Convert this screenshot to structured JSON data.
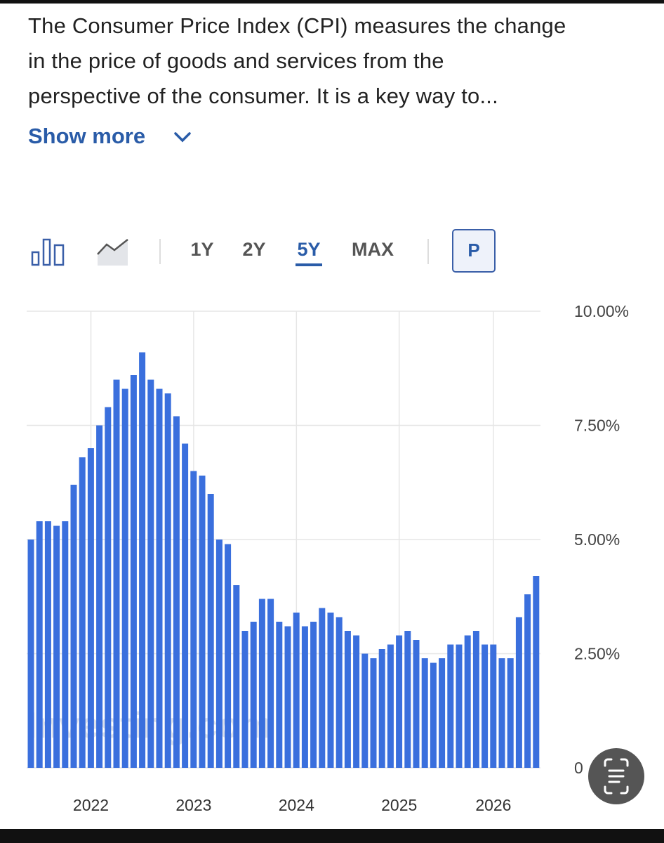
{
  "header": {
    "description": [
      "The Consumer Price Index (CPI) measures the change",
      "in the price of goods and services from the",
      "perspective of the consumer. It is a key way to..."
    ],
    "show_more": "Show more"
  },
  "toolbar": {
    "ranges": [
      "1Y",
      "2Y",
      "5Y",
      "MAX"
    ],
    "selected_range": "5Y",
    "badge": "P"
  },
  "chart_data": {
    "type": "bar",
    "watermark": "Investing.com",
    "color": "#3a6fdd",
    "grid": true,
    "categories": [
      null,
      null,
      null,
      null,
      null,
      null,
      null,
      "2022",
      null,
      null,
      null,
      null,
      null,
      null,
      null,
      null,
      null,
      null,
      null,
      "2023",
      null,
      null,
      null,
      null,
      null,
      null,
      null,
      null,
      null,
      null,
      null,
      "2024",
      null,
      null,
      null,
      null,
      null,
      null,
      null,
      null,
      null,
      null,
      null,
      "2025",
      null,
      null,
      null,
      null,
      null,
      null,
      null,
      null,
      null,
      null,
      "2026",
      null,
      null,
      null,
      null,
      null
    ],
    "values": [
      5.0,
      5.4,
      5.4,
      5.3,
      5.4,
      6.2,
      6.8,
      7.0,
      7.5,
      7.9,
      8.5,
      8.3,
      8.6,
      9.1,
      8.5,
      8.3,
      8.2,
      7.7,
      7.1,
      6.5,
      6.4,
      6.0,
      5.0,
      4.9,
      4.0,
      3.0,
      3.2,
      3.7,
      3.7,
      3.2,
      3.1,
      3.4,
      3.1,
      3.2,
      3.5,
      3.4,
      3.3,
      3.0,
      2.9,
      2.5,
      2.4,
      2.6,
      2.7,
      2.9,
      3.0,
      2.8,
      2.4,
      2.3,
      2.4,
      2.7,
      2.7,
      2.9,
      3.0,
      2.7,
      2.7,
      2.4,
      2.4,
      3.3,
      3.8,
      4.2
    ],
    "ylim": [
      0,
      10
    ],
    "yticks": [
      0,
      {
        "value": 2.5,
        "label": "2.50%"
      },
      {
        "value": 5,
        "label": "5.00%"
      },
      {
        "value": 7.5,
        "label": "7.50%"
      },
      {
        "value": 10,
        "label": "10.00%"
      }
    ]
  }
}
